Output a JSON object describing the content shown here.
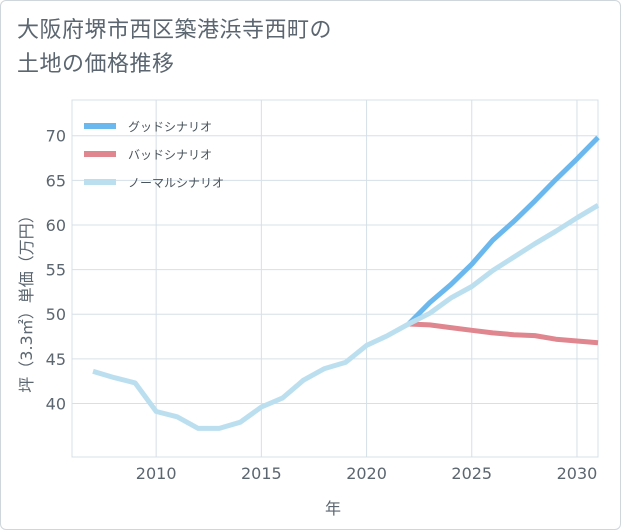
{
  "title_lines": [
    "大阪府堺市西区築港浜寺西町の",
    "土地の価格推移"
  ],
  "chart_data": {
    "type": "line",
    "xlabel": "年",
    "ylabel": "坪（3.3㎡）単価（万円）",
    "xlim": [
      2006,
      2031
    ],
    "ylim": [
      34,
      74
    ],
    "xticks": [
      2010,
      2015,
      2020,
      2025,
      2030
    ],
    "yticks": [
      40,
      45,
      50,
      55,
      60,
      65,
      70
    ],
    "grid": true,
    "legend_position": "top-left",
    "series": [
      {
        "name": "グッドシナリオ",
        "color": "#6ab8ee",
        "x": [
          2022,
          2023,
          2024,
          2025,
          2026,
          2027,
          2028,
          2029,
          2030,
          2031
        ],
        "y": [
          48.9,
          51.3,
          53.3,
          55.6,
          58.3,
          60.4,
          62.7,
          65.1,
          67.4,
          69.8
        ]
      },
      {
        "name": "バッドシナリオ",
        "color": "#e0868f",
        "x": [
          2022,
          2023,
          2024,
          2025,
          2026,
          2027,
          2028,
          2029,
          2030,
          2031
        ],
        "y": [
          48.9,
          48.8,
          48.5,
          48.2,
          47.9,
          47.7,
          47.6,
          47.2,
          47.0,
          46.8
        ]
      },
      {
        "name": "ノーマルシナリオ",
        "color": "#bcdff0",
        "x": [
          2007,
          2008,
          2009,
          2010,
          2011,
          2012,
          2013,
          2014,
          2015,
          2016,
          2017,
          2018,
          2019,
          2020,
          2021,
          2022,
          2023,
          2024,
          2025,
          2026,
          2027,
          2028,
          2029,
          2030,
          2031
        ],
        "y": [
          43.6,
          42.9,
          42.3,
          39.1,
          38.5,
          37.2,
          37.2,
          37.9,
          39.6,
          40.6,
          42.6,
          43.9,
          44.6,
          46.5,
          47.6,
          48.9,
          50.1,
          51.8,
          53.1,
          54.9,
          56.4,
          57.9,
          59.3,
          60.8,
          62.2
        ]
      }
    ]
  }
}
